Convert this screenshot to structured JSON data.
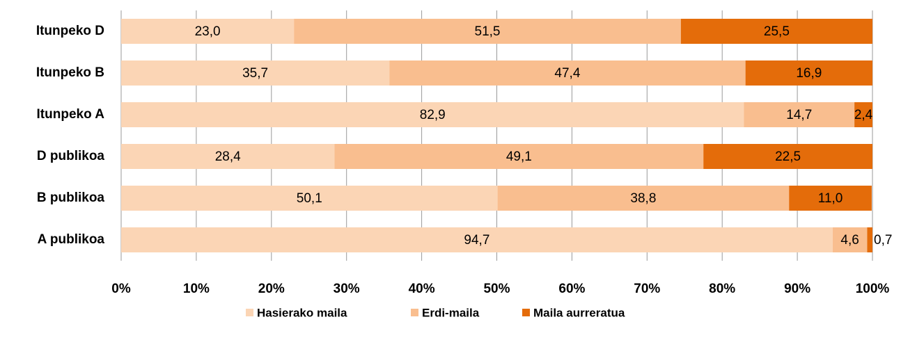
{
  "chart_data": {
    "type": "bar",
    "orientation": "horizontal",
    "stacked": true,
    "categories": [
      "Itunpeko D",
      "Itunpeko B",
      "Itunpeko A",
      "D publikoa",
      "B publikoa",
      "A publikoa"
    ],
    "series": [
      {
        "name": "Hasierako maila",
        "color": "#fbd5b5",
        "values": [
          23.0,
          35.7,
          82.9,
          28.4,
          50.1,
          94.7
        ],
        "value_labels": [
          "23,0",
          "35,7",
          "82,9",
          "28,4",
          "50,1",
          "94,7"
        ]
      },
      {
        "name": "Erdi-maila",
        "color": "#f9be8f",
        "values": [
          51.5,
          47.4,
          14.7,
          49.1,
          38.8,
          4.6
        ],
        "value_labels": [
          "51,5",
          "47,4",
          "14,7",
          "49,1",
          "38,8",
          "4,6"
        ]
      },
      {
        "name": "Maila aurreratua",
        "color": "#e46c0a",
        "values": [
          25.5,
          16.9,
          2.4,
          22.5,
          11.0,
          0.7
        ],
        "value_labels": [
          "25,5",
          "16,9",
          "2,4",
          "22,5",
          "11,0",
          "0,7"
        ]
      }
    ],
    "xlim": [
      0,
      100
    ],
    "xticks": [
      {
        "value": 0,
        "label": "0%"
      },
      {
        "value": 10,
        "label": "10%"
      },
      {
        "value": 20,
        "label": "20%"
      },
      {
        "value": 30,
        "label": "30%"
      },
      {
        "value": 40,
        "label": "40%"
      },
      {
        "value": 50,
        "label": "50%"
      },
      {
        "value": 60,
        "label": "60%"
      },
      {
        "value": 70,
        "label": "70%"
      },
      {
        "value": 80,
        "label": "80%"
      },
      {
        "value": 90,
        "label": "90%"
      },
      {
        "value": 100,
        "label": "100%"
      }
    ],
    "grid": true,
    "legend": "bottom"
  }
}
